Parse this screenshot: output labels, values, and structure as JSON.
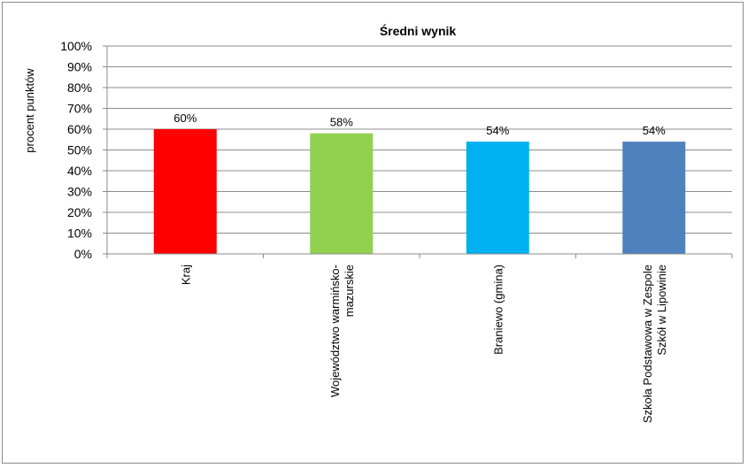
{
  "chart_data": {
    "type": "bar",
    "title": "Średni wynik",
    "ylabel": "procent punktów",
    "xlabel": "",
    "ylim": [
      0,
      100
    ],
    "y_ticks": [
      "0%",
      "10%",
      "20%",
      "30%",
      "40%",
      "50%",
      "60%",
      "70%",
      "80%",
      "90%",
      "100%"
    ],
    "grid": true,
    "legend": "none",
    "categories": [
      [
        "Kraj"
      ],
      [
        "Województwo warmińsko-",
        "mazurskie"
      ],
      [
        "Braniewo (gmina)"
      ],
      [
        "Szkoła Podstawowa w Zespole",
        "Szkół w Lipowinie"
      ]
    ],
    "values": [
      60,
      58,
      54,
      54
    ],
    "value_labels": [
      "60%",
      "58%",
      "54%",
      "54%"
    ],
    "colors": [
      "#ff0000",
      "#92d050",
      "#00b0f0",
      "#4f81bd"
    ]
  }
}
